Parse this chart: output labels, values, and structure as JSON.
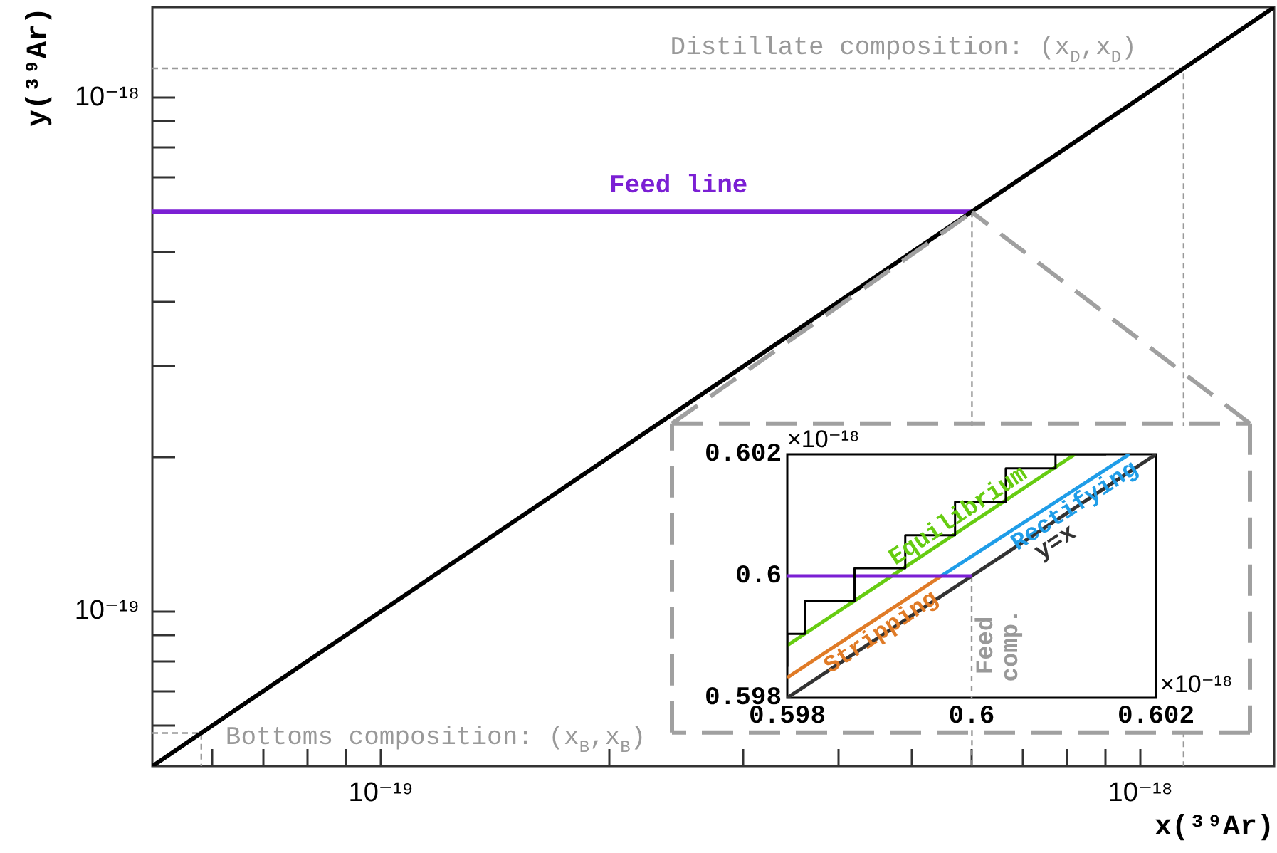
{
  "chart_data": [
    {
      "type": "line",
      "xlabel": "x(³⁹Ar)",
      "ylabel": "y(³⁹Ar)",
      "log": "xy",
      "xlim": [
        5e-20,
        1.5e-18
      ],
      "ylim": [
        5e-20,
        1.5e-18
      ],
      "xticks": [
        {
          "value": 6e-20,
          "label": null
        },
        {
          "value": 7e-20,
          "label": null
        },
        {
          "value": 8e-20,
          "label": null
        },
        {
          "value": 9e-20,
          "label": null
        },
        {
          "value": 1e-19,
          "label": "10⁻¹⁹"
        },
        {
          "value": 2e-19,
          "label": null
        },
        {
          "value": 3e-19,
          "label": null
        },
        {
          "value": 4e-19,
          "label": null
        },
        {
          "value": 5e-19,
          "label": null
        },
        {
          "value": 6e-19,
          "label": null
        },
        {
          "value": 7e-19,
          "label": null
        },
        {
          "value": 8e-19,
          "label": null
        },
        {
          "value": 9e-19,
          "label": null
        },
        {
          "value": 1e-18,
          "label": "10⁻¹⁸"
        }
      ],
      "yticks": [
        {
          "value": 6e-20,
          "label": null
        },
        {
          "value": 7e-20,
          "label": null
        },
        {
          "value": 8e-20,
          "label": null
        },
        {
          "value": 9e-20,
          "label": null
        },
        {
          "value": 1e-19,
          "label": "10⁻¹⁹"
        },
        {
          "value": 2e-19,
          "label": null
        },
        {
          "value": 3e-19,
          "label": null
        },
        {
          "value": 4e-19,
          "label": null
        },
        {
          "value": 5e-19,
          "label": null
        },
        {
          "value": 6e-19,
          "label": null
        },
        {
          "value": 7e-19,
          "label": null
        },
        {
          "value": 8e-19,
          "label": null
        },
        {
          "value": 9e-19,
          "label": null
        },
        {
          "value": 1e-18,
          "label": "10⁻¹⁸"
        }
      ],
      "annotations": [
        {
          "text": "Distillate composition: (x$_{D}$,x$_{D}$)",
          "x": 1.14e-18,
          "y": 1.14e-18
        },
        {
          "text": "Bottoms composition: (x$_{B}$,x$_{B}$)",
          "x": 5.8e-20,
          "y": 5.8e-20
        }
      ],
      "series": [
        {
          "color": "#999999",
          "line_style": "dashed",
          "x": [
            6e-19,
            6e-19
          ],
          "values": [
            6e-19,
            5e-20
          ]
        },
        {
          "color": "#999999",
          "line_style": "dashed",
          "x": [
            5e-20,
            1.14e-18,
            1.14e-18
          ],
          "values": [
            1.14e-18,
            1.14e-18,
            5e-20
          ]
        },
        {
          "color": "#999999",
          "line_style": "dashed",
          "x": [
            5e-20,
            5.8e-20,
            5.8e-20
          ],
          "values": [
            5.8e-20,
            5.8e-20,
            5e-20
          ]
        },
        {
          "name": "Feed line",
          "color": "#7b1fd4",
          "x": [
            5e-20,
            6e-19
          ],
          "values": [
            6e-19,
            6e-19
          ]
        },
        {
          "color": "#000000",
          "x": [
            5e-20,
            1.5e-18
          ],
          "values": [
            5e-20,
            1.5e-18
          ]
        }
      ]
    },
    {
      "type": "line",
      "xlabel": "×10⁻¹⁸",
      "ylabel": "×10⁻¹⁸",
      "xlim": [
        0.598,
        0.602
      ],
      "ylim": [
        0.598,
        0.602
      ],
      "xticks": [
        0.598,
        0.6,
        0.602
      ],
      "yticks": [
        0.598,
        0.6,
        0.602
      ],
      "series": [
        {
          "name": "Feed comp.",
          "color": "#999999",
          "line_style": "dashed",
          "x": [
            0.6,
            0.6
          ],
          "values": [
            0.6,
            0.598
          ]
        },
        {
          "name": "y=x",
          "color": "#333333",
          "x": [
            0.598,
            0.602
          ],
          "values": [
            0.598,
            0.602
          ]
        },
        {
          "name": "Stripping",
          "color": "#e07b27",
          "x": [
            0.598,
            0.59967
          ],
          "values": [
            0.59833,
            0.6
          ]
        },
        {
          "name": "Rectifying",
          "color": "#1f9de8",
          "x": [
            0.59967,
            0.60171
          ],
          "values": [
            0.6,
            0.602
          ]
        },
        {
          "name": "Equilibrium",
          "color": "#66cc11",
          "x": [
            0.598,
            0.60112
          ],
          "values": [
            0.59886,
            0.602
          ]
        },
        {
          "color": "#7b1fd4",
          "x": [
            0.598,
            0.6
          ],
          "values": [
            0.6,
            0.6
          ]
        },
        {
          "type": "step",
          "color": "#000000",
          "x": [
            0.598,
            0.59819,
            0.59873,
            0.59928,
            0.59982,
            0.60037,
            0.60091,
            0.60146
          ],
          "values": [
            0.59851,
            0.59905,
            0.59959,
            0.60013,
            0.60067,
            0.60122,
            0.60177,
            0.602
          ]
        }
      ]
    }
  ]
}
